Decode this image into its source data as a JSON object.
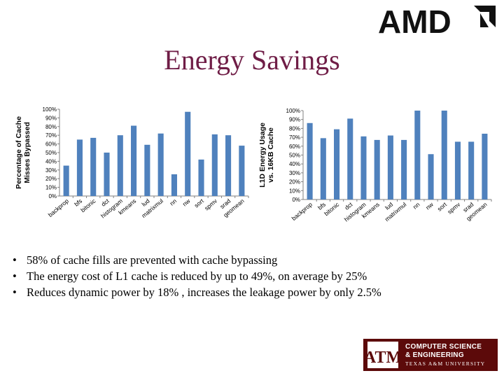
{
  "slide": {
    "title": "Energy Savings",
    "bullets": [
      "58% of cache fills are prevented with cache bypassing",
      "The energy cost of L1 cache is reduced by up to 49%, on average by 25%",
      "Reduces dynamic power by 18% , increases the leakage power by only 2.5%"
    ]
  },
  "logos": {
    "amd": {
      "text": "AMD"
    },
    "tamu": {
      "line1": "COMPUTER SCIENCE",
      "line2": "& ENGINEERING",
      "line3": "TEXAS A&M UNIVERSITY",
      "mark": "ATM"
    }
  },
  "colors": {
    "bar": "#4f81bd",
    "title": "#6f1d46",
    "tamu_maroon": "#5c0a0a"
  },
  "chart_data": [
    {
      "type": "bar",
      "title": "",
      "xlabel": "",
      "ylabel": "Percentage of Cache Misses Bypassed",
      "ylim": [
        0,
        100
      ],
      "yticks": [
        "0%",
        "10%",
        "20%",
        "30%",
        "40%",
        "50%",
        "60%",
        "70%",
        "80%",
        "90%",
        "100%"
      ],
      "categories": [
        "backprop",
        "bfs",
        "bitonic",
        "dct",
        "histogram",
        "kmeans",
        "lud",
        "matrixmul",
        "nn",
        "nw",
        "sort",
        "spmv",
        "srad",
        "geomean"
      ],
      "values": [
        35,
        65,
        67,
        50,
        70,
        81,
        59,
        72,
        25,
        97,
        42,
        71,
        70,
        58
      ]
    },
    {
      "type": "bar",
      "title": "",
      "xlabel": "",
      "ylabel": "L1D Energy Usage vs. 16KB Cache",
      "ylim": [
        0,
        100
      ],
      "yticks": [
        "0%",
        "10%",
        "20%",
        "30%",
        "40%",
        "50%",
        "60%",
        "70%",
        "80%",
        "90%",
        "100%"
      ],
      "categories": [
        "backprop",
        "bfs",
        "bitonic",
        "dct",
        "histogram",
        "kmeans",
        "lud",
        "matrixmul",
        "nn",
        "nw",
        "sort",
        "spmv",
        "srad",
        "geomean"
      ],
      "values": [
        86,
        69,
        79,
        91,
        71,
        67,
        72,
        67,
        100,
        51,
        100,
        65,
        65,
        74
      ]
    }
  ]
}
